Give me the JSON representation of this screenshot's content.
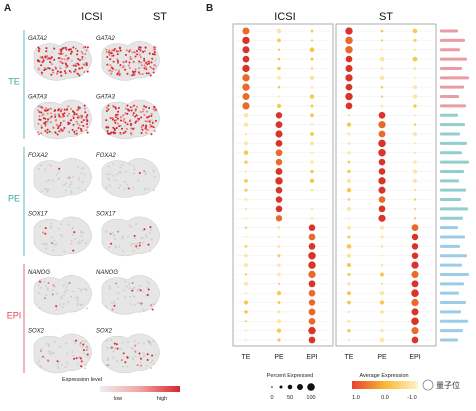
{
  "panel_a": {
    "letter": "A",
    "columns": [
      "ICSI",
      "ST"
    ],
    "groups": [
      {
        "name": "TE",
        "color": "#3aa6a6",
        "genes": [
          "GATA2",
          "GATA3"
        ],
        "intensity": [
          0.9,
          0.95
        ]
      },
      {
        "name": "PE",
        "color": "#3aa6a6",
        "genes": [
          "FOXA2",
          "SOX17"
        ],
        "intensity": [
          0.08,
          0.12
        ]
      },
      {
        "name": "EPI",
        "color": "#d84a5a",
        "genes": [
          "NANOG",
          "SOX2"
        ],
        "intensity": [
          0.15,
          0.25
        ]
      }
    ],
    "legend": {
      "title": "Expression level",
      "low": "low",
      "high": "high"
    }
  },
  "panel_b": {
    "letter": "B",
    "columns": [
      "ICSI",
      "ST"
    ],
    "x_categories": [
      "TE",
      "PE",
      "EPI"
    ],
    "row_label_groups": [
      {
        "group": "EPI",
        "color": "#d84a5a",
        "count": 9
      },
      {
        "group": "PE",
        "color": "#3aa6a6",
        "count": 12
      },
      {
        "group": "TE",
        "color": "#4aa3d6",
        "count": 13
      }
    ],
    "legend_size_title": "Percent Expressed",
    "legend_size_ticks": [
      "0",
      "50",
      "100"
    ],
    "legend_color_title": "Average Expression",
    "legend_color_ticks": [
      "1.0",
      "0.0",
      "-1.0"
    ],
    "watermark": "量子位"
  }
}
